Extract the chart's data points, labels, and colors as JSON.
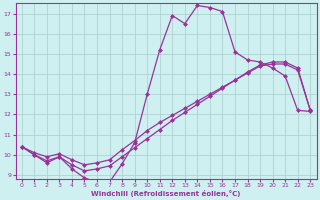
{
  "xlabel": "Windchill (Refroidissement éolien,°C)",
  "bg_color": "#cef0f0",
  "grid_color": "#aacccc",
  "line_color": "#993399",
  "xlim": [
    -0.5,
    23.5
  ],
  "ylim": [
    8.8,
    17.5
  ],
  "yticks": [
    9,
    10,
    11,
    12,
    13,
    14,
    15,
    16,
    17
  ],
  "xticks": [
    0,
    1,
    2,
    3,
    4,
    5,
    6,
    7,
    8,
    9,
    10,
    11,
    12,
    13,
    14,
    15,
    16,
    17,
    18,
    19,
    20,
    21,
    22,
    23
  ],
  "curve1_x": [
    0,
    1,
    2,
    3,
    4,
    5,
    6,
    7,
    8,
    9,
    10,
    11,
    12,
    13,
    14,
    15,
    16,
    17,
    18,
    19,
    20,
    21,
    22,
    23
  ],
  "curve1_y": [
    10.4,
    10.0,
    9.6,
    9.9,
    9.3,
    8.85,
    8.65,
    8.65,
    9.55,
    10.6,
    13.0,
    15.2,
    16.9,
    16.5,
    17.4,
    17.3,
    17.1,
    15.1,
    14.7,
    14.6,
    14.3,
    13.9,
    12.2,
    12.15
  ],
  "curve2_x": [
    0,
    1,
    2,
    3,
    4,
    5,
    6,
    7,
    8,
    9,
    10,
    11,
    12,
    13,
    14,
    15,
    16,
    17,
    18,
    19,
    20,
    21,
    22,
    23
  ],
  "curve2_y": [
    10.4,
    10.1,
    9.9,
    10.05,
    9.75,
    9.5,
    9.6,
    9.75,
    10.25,
    10.7,
    11.2,
    11.6,
    11.95,
    12.3,
    12.65,
    13.0,
    13.35,
    13.7,
    14.05,
    14.4,
    14.5,
    14.5,
    14.2,
    12.2
  ],
  "curve3_x": [
    0,
    1,
    2,
    3,
    4,
    5,
    6,
    7,
    8,
    9,
    10,
    11,
    12,
    13,
    14,
    15,
    16,
    17,
    18,
    19,
    20,
    21,
    22,
    23
  ],
  "curve3_y": [
    10.4,
    10.0,
    9.7,
    9.9,
    9.5,
    9.2,
    9.3,
    9.45,
    9.9,
    10.35,
    10.8,
    11.25,
    11.7,
    12.1,
    12.5,
    12.9,
    13.3,
    13.7,
    14.1,
    14.45,
    14.6,
    14.6,
    14.3,
    12.2
  ]
}
